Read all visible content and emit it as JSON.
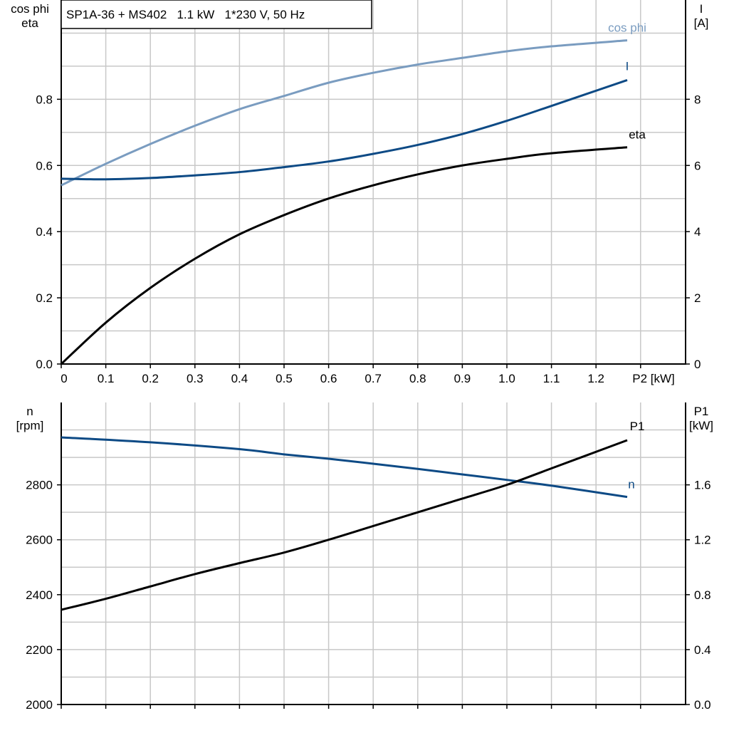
{
  "title": "SP1A-36 + MS402   1.1 kW   1*230 V, 50 Hz",
  "colors": {
    "cos_phi": "#7a9cc0",
    "I": "#0d4a85",
    "eta": "#000000",
    "n": "#0d4a85",
    "P1": "#000000",
    "grid": "#c8c8c8"
  },
  "chart_data": [
    {
      "type": "line",
      "xlabel": "P2 [kW]",
      "ylabel_left": [
        "cos phi",
        "eta"
      ],
      "ylabel_right": [
        "I",
        "[A]"
      ],
      "xlim": [
        0,
        1.4
      ],
      "ylim_left": [
        0,
        1.1
      ],
      "ylim_right": [
        0,
        11
      ],
      "x_ticks": [
        "0",
        "0.1",
        "0.2",
        "0.3",
        "0.4",
        "0.5",
        "0.6",
        "0.7",
        "0.8",
        "0.9",
        "1.0",
        "1.1",
        "1.2"
      ],
      "y_ticks_left": [
        "0.0",
        "0.2",
        "0.4",
        "0.6",
        "0.8"
      ],
      "y_ticks_right": [
        "0",
        "2",
        "4",
        "6",
        "8"
      ],
      "grid": true,
      "series": [
        {
          "name": "cos phi",
          "axis": "left",
          "x": [
            0,
            0.1,
            0.2,
            0.3,
            0.4,
            0.5,
            0.6,
            0.7,
            0.8,
            0.9,
            1.0,
            1.1,
            1.27
          ],
          "y": [
            0.54,
            0.605,
            0.665,
            0.72,
            0.77,
            0.81,
            0.85,
            0.88,
            0.905,
            0.925,
            0.945,
            0.96,
            0.978
          ]
        },
        {
          "name": "I",
          "axis": "right",
          "x": [
            0,
            0.1,
            0.2,
            0.3,
            0.4,
            0.5,
            0.6,
            0.7,
            0.8,
            0.9,
            1.0,
            1.1,
            1.27
          ],
          "y": [
            5.6,
            5.58,
            5.62,
            5.7,
            5.8,
            5.95,
            6.12,
            6.35,
            6.62,
            6.95,
            7.35,
            7.8,
            8.58
          ]
        },
        {
          "name": "eta",
          "axis": "left",
          "x": [
            0,
            0.1,
            0.2,
            0.3,
            0.4,
            0.5,
            0.6,
            0.7,
            0.8,
            0.9,
            1.0,
            1.1,
            1.27
          ],
          "y": [
            0,
            0.125,
            0.23,
            0.318,
            0.392,
            0.45,
            0.5,
            0.54,
            0.573,
            0.6,
            0.62,
            0.637,
            0.655
          ]
        }
      ]
    },
    {
      "type": "line",
      "xlim": [
        0,
        1.4
      ],
      "ylabel_left": [
        "n",
        "[rpm]"
      ],
      "ylabel_right": [
        "P1",
        "[kW]"
      ],
      "ylim_left": [
        2000,
        3100
      ],
      "ylim_right": [
        0,
        2.2
      ],
      "y_ticks_left": [
        "2000",
        "2200",
        "2400",
        "2600",
        "2800"
      ],
      "y_ticks_right": [
        "0.0",
        "0.4",
        "0.8",
        "1.2",
        "1.6"
      ],
      "grid": true,
      "series": [
        {
          "name": "n",
          "axis": "left",
          "x": [
            0,
            0.2,
            0.4,
            0.5,
            0.6,
            0.7,
            0.8,
            0.9,
            1.0,
            1.1,
            1.27
          ],
          "y": [
            2973,
            2955,
            2930,
            2911,
            2895,
            2877,
            2858,
            2838,
            2818,
            2797,
            2756
          ]
        },
        {
          "name": "P1",
          "axis": "right",
          "x": [
            0,
            0.1,
            0.2,
            0.3,
            0.4,
            0.5,
            0.6,
            0.7,
            0.8,
            0.9,
            1.0,
            1.1,
            1.27
          ],
          "y": [
            0.69,
            0.77,
            0.86,
            0.95,
            1.03,
            1.107,
            1.2,
            1.3,
            1.4,
            1.5,
            1.6,
            1.72,
            1.925
          ]
        }
      ]
    }
  ]
}
